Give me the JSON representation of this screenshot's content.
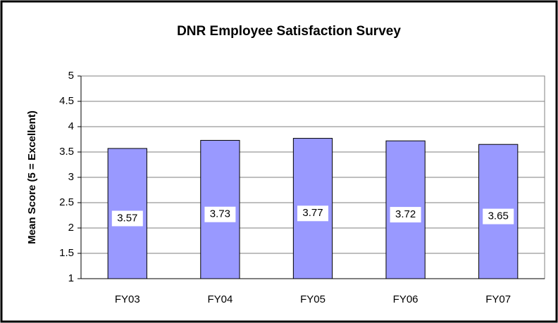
{
  "chart_data": {
    "type": "bar",
    "title": "DNR Employee Satisfaction Survey",
    "y_label": "Mean Score (5 = Excellent)",
    "categories": [
      "FY03",
      "FY04",
      "FY05",
      "FY06",
      "FY07"
    ],
    "values": [
      3.57,
      3.73,
      3.77,
      3.72,
      3.65
    ],
    "color": "#9999ff",
    "ylim": [
      1,
      5
    ],
    "yticks": [
      1,
      1.5,
      2,
      2.5,
      3,
      3.5,
      4,
      4.5,
      5
    ],
    "grid": true
  }
}
